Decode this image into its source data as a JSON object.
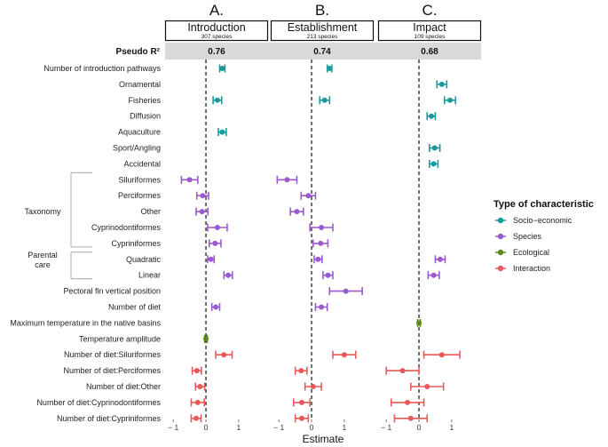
{
  "chart_data": {
    "type": "forest",
    "xlabel": "Estimate",
    "xlim": [
      -1.25,
      1.9
    ],
    "xticks": [
      -1,
      0,
      1
    ],
    "pseudo_r2_label": "Pseudo R²",
    "panels": [
      {
        "letter": "A.",
        "title": "Introduction",
        "n_label": "307 species",
        "pseudo_r2": "0.76"
      },
      {
        "letter": "B.",
        "title": "Establishment",
        "n_label": "213 species",
        "pseudo_r2": "0.74"
      },
      {
        "letter": "C.",
        "title": "Impact",
        "n_label": "109 species",
        "pseudo_r2": "0.68"
      }
    ],
    "rows": [
      {
        "label": "Number of introduction pathways",
        "type": "Socio-economic",
        "est": [
          0.5,
          0.55,
          null
        ],
        "lo": [
          0.42,
          0.48,
          null
        ],
        "hi": [
          0.58,
          0.62,
          null
        ]
      },
      {
        "label": "Ornamental",
        "type": "Socio-economic",
        "est": [
          null,
          null,
          0.7
        ],
        "lo": [
          null,
          null,
          0.55
        ],
        "hi": [
          null,
          null,
          0.85
        ]
      },
      {
        "label": "Fisheries",
        "type": "Socio-economic",
        "est": [
          0.35,
          0.4,
          0.95
        ],
        "lo": [
          0.22,
          0.25,
          0.78
        ],
        "hi": [
          0.48,
          0.55,
          1.12
        ]
      },
      {
        "label": "Diffusion",
        "type": "Socio-economic",
        "est": [
          null,
          null,
          0.38
        ],
        "lo": [
          null,
          null,
          0.25
        ],
        "hi": [
          null,
          null,
          0.5
        ]
      },
      {
        "label": "Aquaculture",
        "type": "Socio-economic",
        "est": [
          0.5,
          null,
          null
        ],
        "lo": [
          0.38,
          null,
          null
        ],
        "hi": [
          0.62,
          null,
          null
        ]
      },
      {
        "label": "Sport/Angling",
        "type": "Socio-economic",
        "est": [
          null,
          null,
          0.48
        ],
        "lo": [
          null,
          null,
          0.32
        ],
        "hi": [
          null,
          null,
          0.64
        ]
      },
      {
        "label": "Accidental",
        "type": "Socio-economic",
        "est": [
          null,
          null,
          0.45
        ],
        "lo": [
          null,
          null,
          0.32
        ],
        "hi": [
          null,
          null,
          0.58
        ]
      },
      {
        "label": "Siluriformes",
        "type": "Species",
        "est": [
          -0.5,
          -0.75,
          null
        ],
        "lo": [
          -0.75,
          -1.05,
          null
        ],
        "hi": [
          -0.25,
          -0.45,
          null
        ]
      },
      {
        "label": "Perciformes",
        "type": "Species",
        "est": [
          -0.1,
          -0.1,
          null
        ],
        "lo": [
          -0.28,
          -0.32,
          null
        ],
        "hi": [
          0.08,
          0.12,
          null
        ]
      },
      {
        "label": "Other",
        "type": "Species",
        "est": [
          -0.12,
          -0.45,
          null
        ],
        "lo": [
          -0.3,
          -0.65,
          null
        ],
        "hi": [
          0.06,
          -0.25,
          null
        ]
      },
      {
        "label": "Cyprinodontiformes",
        "type": "Species",
        "est": [
          0.35,
          0.3,
          null
        ],
        "lo": [
          0.05,
          -0.05,
          null
        ],
        "hi": [
          0.65,
          0.65,
          null
        ]
      },
      {
        "label": "Cypriniformes",
        "type": "Species",
        "est": [
          0.28,
          0.28,
          null
        ],
        "lo": [
          0.1,
          0.05,
          null
        ],
        "hi": [
          0.46,
          0.5,
          null
        ]
      },
      {
        "label": "Quadratic",
        "type": "Species",
        "est": [
          0.15,
          0.2,
          0.65
        ],
        "lo": [
          0.05,
          0.08,
          0.5
        ],
        "hi": [
          0.25,
          0.32,
          0.8
        ]
      },
      {
        "label": "Linear",
        "type": "Species",
        "est": [
          0.68,
          0.5,
          0.45
        ],
        "lo": [
          0.55,
          0.35,
          0.28
        ],
        "hi": [
          0.81,
          0.65,
          0.62
        ]
      },
      {
        "label": "Pectoral fin vertical position",
        "type": "Species",
        "est": [
          null,
          1.05,
          null
        ],
        "lo": [
          null,
          0.55,
          null
        ],
        "hi": [
          null,
          1.55,
          null
        ]
      },
      {
        "label": "Number of diet",
        "type": "Species",
        "est": [
          0.3,
          0.3,
          null
        ],
        "lo": [
          0.18,
          0.12,
          null
        ],
        "hi": [
          0.42,
          0.48,
          null
        ]
      },
      {
        "label": "Maximum temperature in the native basins",
        "type": "Ecological",
        "est": [
          null,
          null,
          0.0
        ],
        "lo": [
          null,
          null,
          -0.04
        ],
        "hi": [
          null,
          null,
          0.04
        ]
      },
      {
        "label": "Temperature amplitude",
        "type": "Ecological",
        "est": [
          0.0,
          null,
          null
        ],
        "lo": [
          -0.04,
          null,
          null
        ],
        "hi": [
          0.04,
          null,
          null
        ]
      },
      {
        "label": "Number of diet:Siluriformes",
        "type": "Interaction",
        "est": [
          0.55,
          1.0,
          0.7
        ],
        "lo": [
          0.3,
          0.65,
          0.15
        ],
        "hi": [
          0.8,
          1.35,
          1.25
        ]
      },
      {
        "label": "Number of diet:Perciformes",
        "type": "Interaction",
        "est": [
          -0.28,
          -0.32,
          -0.5
        ],
        "lo": [
          -0.42,
          -0.5,
          -1.0
        ],
        "hi": [
          -0.14,
          -0.14,
          0.0
        ]
      },
      {
        "label": "Number of diet:Other",
        "type": "Interaction",
        "est": [
          -0.18,
          0.05,
          0.25
        ],
        "lo": [
          -0.32,
          -0.2,
          -0.25
        ],
        "hi": [
          -0.04,
          0.3,
          0.75
        ]
      },
      {
        "label": "Number of diet:Cyprinodontiformes",
        "type": "Interaction",
        "est": [
          -0.25,
          -0.3,
          -0.35
        ],
        "lo": [
          -0.45,
          -0.55,
          -0.85
        ],
        "hi": [
          -0.05,
          -0.05,
          0.15
        ]
      },
      {
        "label": "Number of diet:Cypriniformes",
        "type": "Interaction",
        "est": [
          -0.3,
          -0.3,
          -0.25
        ],
        "lo": [
          -0.45,
          -0.5,
          -0.75
        ],
        "hi": [
          -0.15,
          -0.1,
          0.25
        ]
      }
    ],
    "groups": [
      {
        "label": "Taxonomy",
        "from_row": 7,
        "to_row": 11
      },
      {
        "label": "Parental care",
        "from_row": 12,
        "to_row": 13
      }
    ],
    "legend": {
      "title": "Type of characteristic",
      "position": "right",
      "items": [
        {
          "label": "Socio−economic",
          "color": "#1a9a9a"
        },
        {
          "label": "Species",
          "color": "#9b59d0"
        },
        {
          "label": "Ecological",
          "color": "#5a8a1a"
        },
        {
          "label": "Interaction",
          "color": "#e8595a"
        }
      ]
    }
  }
}
